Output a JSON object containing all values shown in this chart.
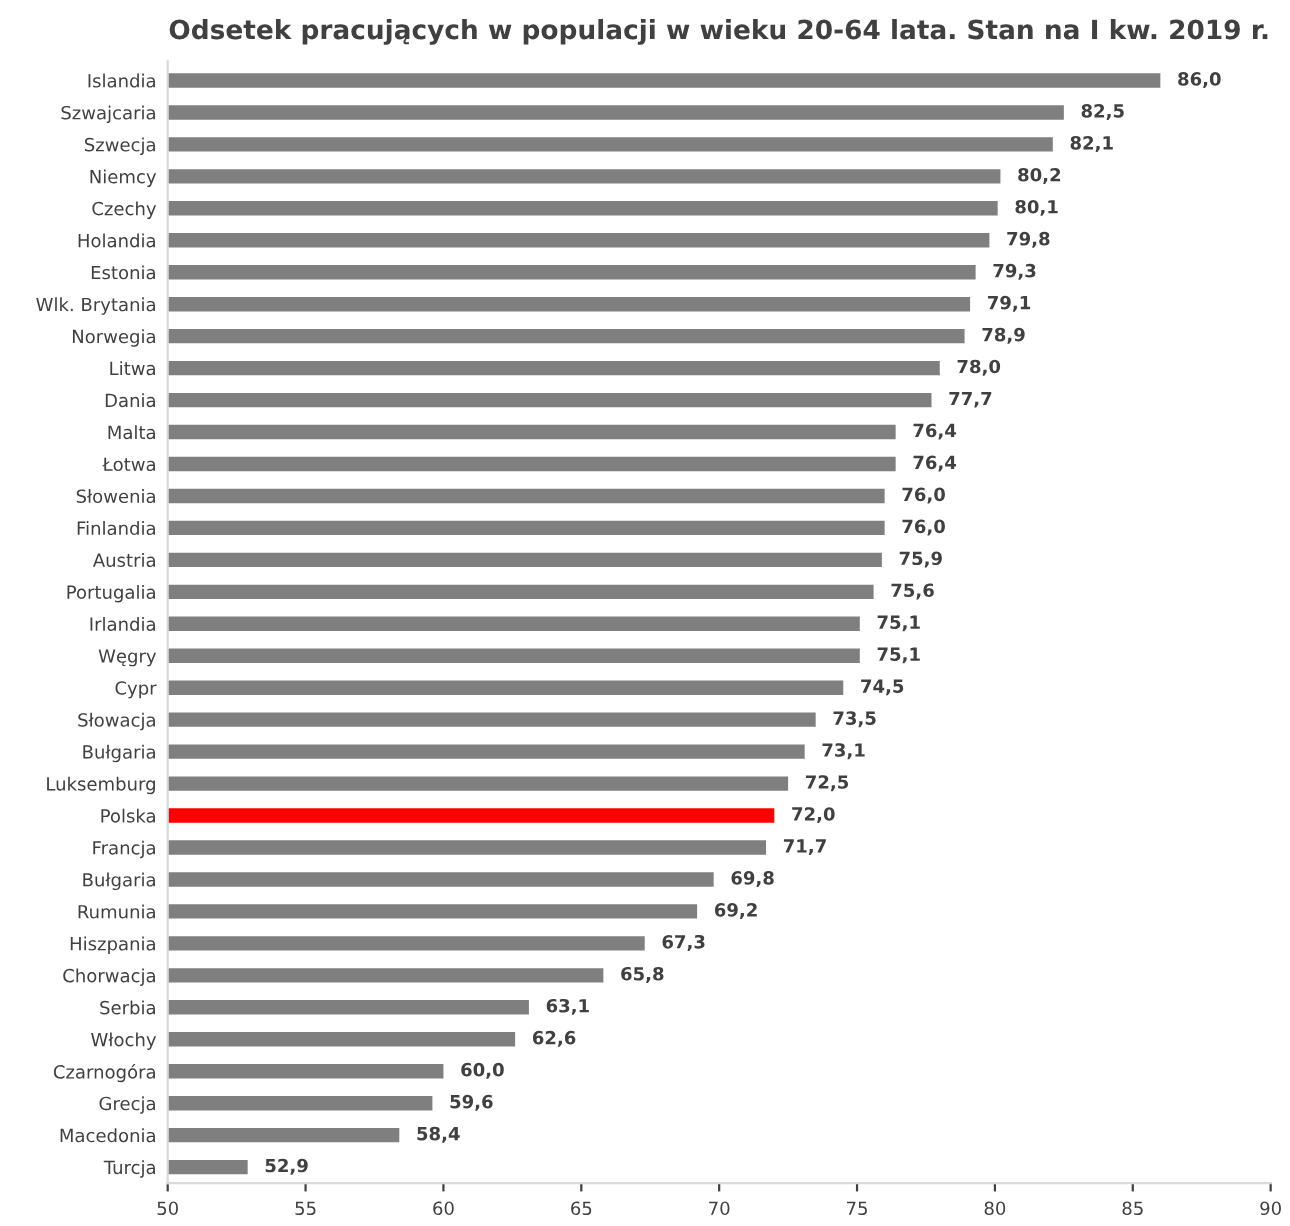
{
  "chart_data": {
    "type": "bar",
    "orientation": "horizontal",
    "title": "Odsetek pracujących w populacji w wieku 20-64 lata. Stan na I kw. 2019 r.",
    "categories": [
      "Islandia",
      "Szwajcaria",
      "Szwecja",
      "Niemcy",
      "Czechy",
      "Holandia",
      "Estonia",
      "Wlk. Brytania",
      "Norwegia",
      "Litwa",
      "Dania",
      "Malta",
      "Łotwa",
      "Słowenia",
      "Finlandia",
      "Austria",
      "Portugalia",
      "Irlandia",
      "Węgry",
      "Cypr",
      "Słowacja",
      "Bułgaria",
      "Luksemburg",
      "Polska",
      "Francja",
      "Bułgaria",
      "Rumunia",
      "Hiszpania",
      "Chorwacja",
      "Serbia",
      "Włochy",
      "Czarnogóra",
      "Grecja",
      "Macedonia",
      "Turcja"
    ],
    "values": [
      86.0,
      82.5,
      82.1,
      80.2,
      80.1,
      79.8,
      79.3,
      79.1,
      78.9,
      78.0,
      77.7,
      76.4,
      76.4,
      76.0,
      76.0,
      75.9,
      75.6,
      75.1,
      75.1,
      74.5,
      73.5,
      73.1,
      72.5,
      72.0,
      71.7,
      69.8,
      69.2,
      67.3,
      65.8,
      63.1,
      62.6,
      60.0,
      59.6,
      58.4,
      52.9
    ],
    "value_labels": [
      "86,0",
      "82,5",
      "82,1",
      "80,2",
      "80,1",
      "79,8",
      "79,3",
      "79,1",
      "78,9",
      "78,0",
      "77,7",
      "76,4",
      "76,4",
      "76,0",
      "76,0",
      "75,9",
      "75,6",
      "75,1",
      "75,1",
      "74,5",
      "73,5",
      "73,1",
      "72,5",
      "72,0",
      "71,7",
      "69,8",
      "69,2",
      "67,3",
      "65,8",
      "63,1",
      "62,6",
      "60,0",
      "59,6",
      "58,4",
      "52,9"
    ],
    "colors": [
      "#7f7f7f",
      "#7f7f7f",
      "#7f7f7f",
      "#7f7f7f",
      "#7f7f7f",
      "#7f7f7f",
      "#7f7f7f",
      "#7f7f7f",
      "#7f7f7f",
      "#7f7f7f",
      "#7f7f7f",
      "#7f7f7f",
      "#7f7f7f",
      "#7f7f7f",
      "#7f7f7f",
      "#7f7f7f",
      "#7f7f7f",
      "#7f7f7f",
      "#7f7f7f",
      "#7f7f7f",
      "#7f7f7f",
      "#7f7f7f",
      "#7f7f7f",
      "#ff0000",
      "#7f7f7f",
      "#7f7f7f",
      "#7f7f7f",
      "#7f7f7f",
      "#7f7f7f",
      "#7f7f7f",
      "#7f7f7f",
      "#7f7f7f",
      "#7f7f7f",
      "#7f7f7f",
      "#7f7f7f"
    ],
    "xlim": [
      50,
      90
    ],
    "xticks": [
      50,
      55,
      60,
      65,
      70,
      75,
      80,
      85,
      90
    ],
    "grid": false
  }
}
